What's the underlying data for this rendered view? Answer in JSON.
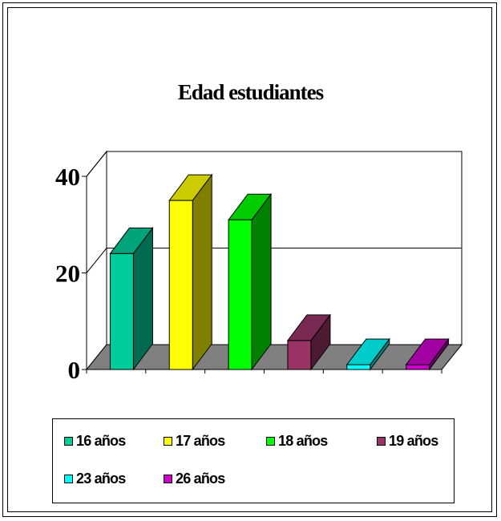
{
  "chart_data": {
    "type": "bar",
    "title": "Edad estudiantes",
    "categories": [
      "16 años",
      "17 años",
      "18 años",
      "19 años",
      "23 años",
      "26 años"
    ],
    "values": [
      24,
      35,
      31,
      6,
      1,
      1
    ],
    "colors": [
      "#00CC99",
      "#FFFF00",
      "#00FF00",
      "#993366",
      "#00FFFF",
      "#CC00CC"
    ],
    "side_colors": [
      "#006B50",
      "#808000",
      "#008000",
      "#4D1A33",
      "#008080",
      "#660066"
    ],
    "top_colors": [
      "#00A37A",
      "#CCCC00",
      "#00CC00",
      "#7A2952",
      "#00CCCC",
      "#A300A3"
    ],
    "ylim": [
      0,
      40
    ],
    "yticks": [
      "0",
      "20",
      "40"
    ],
    "xlabel": "",
    "ylabel": "",
    "grid": true,
    "legend_position": "bottom",
    "floor_color": "#808080"
  }
}
